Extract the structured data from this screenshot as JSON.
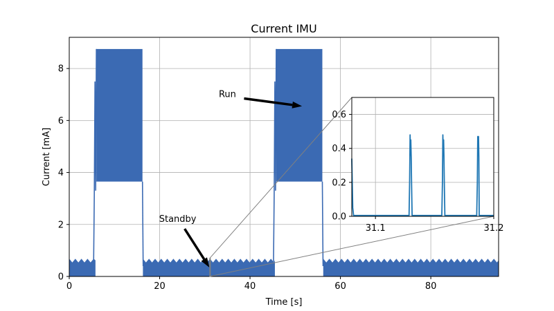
{
  "chart_data": [
    {
      "type": "area",
      "title": "Current IMU",
      "xlabel": "Time [s]",
      "ylabel": "Current [mA]",
      "xlim": [
        0,
        95
      ],
      "ylim": [
        0,
        9.2
      ],
      "xticks": [
        0,
        20,
        40,
        60,
        80
      ],
      "yticks": [
        0,
        2,
        4,
        6,
        8
      ],
      "grid": true,
      "color": "#3b6ab3",
      "series": [
        {
          "segments": [
            {
              "phase": "standby",
              "x": [
                0,
                5.8
              ],
              "y_min": 0.0,
              "y_max": 0.62,
              "standby_peak": 0.68
            },
            {
              "phase": "run",
              "x": [
                6.0,
                16.2
              ],
              "y_min": 3.65,
              "y_max": 8.75
            },
            {
              "phase": "standby",
              "x": [
                16.3,
                45.5
              ],
              "y_min": 0.0,
              "y_max": 0.62,
              "standby_peak": 0.68
            },
            {
              "phase": "run",
              "x": [
                45.8,
                56.0
              ],
              "y_min": 3.65,
              "y_max": 8.75
            },
            {
              "phase": "standby",
              "x": [
                56.2,
                95
              ],
              "y_min": 0.0,
              "y_max": 0.62,
              "standby_peak": 0.68
            }
          ]
        }
      ],
      "annotations": [
        {
          "text": "Run",
          "text_at": [
            35,
            6.9
          ],
          "arrow_to": [
            51.5,
            6.55
          ]
        },
        {
          "text": "Standby",
          "text_at": [
            24,
            2.1
          ],
          "arrow_to": [
            31,
            0.35
          ]
        }
      ]
    },
    {
      "type": "line",
      "role": "inset",
      "xlim": [
        31.08,
        31.2
      ],
      "ylim": [
        0,
        0.7
      ],
      "xticks": [
        31.1,
        31.2
      ],
      "yticks": [
        0.0,
        0.2,
        0.4,
        0.6
      ],
      "grid": true,
      "color": "#1f77b4",
      "series": [
        {
          "x": [
            31.08,
            31.0808,
            31.0815,
            31.082,
            31.1284,
            31.1289,
            31.1293,
            31.1296,
            31.1299,
            31.1302,
            31.1305,
            31.131,
            31.1315,
            31.1561,
            31.1566,
            31.157,
            31.1573,
            31.1576,
            31.1579,
            31.1582,
            31.1587,
            31.1592,
            31.1856,
            31.1861,
            31.1865,
            31.1868,
            31.1871,
            31.1874,
            31.1877,
            31.1882,
            31.1887,
            31.2
          ],
          "y": [
            0.34,
            0.05,
            0.005,
            0.005,
            0.005,
            0.2,
            0.48,
            0.36,
            0.45,
            0.35,
            0.2,
            0.005,
            0.005,
            0.005,
            0.2,
            0.48,
            0.36,
            0.45,
            0.35,
            0.2,
            0.005,
            0.005,
            0.005,
            0.2,
            0.47,
            0.36,
            0.47,
            0.35,
            0.005,
            0.005,
            0.005,
            0.005
          ]
        }
      ]
    }
  ]
}
